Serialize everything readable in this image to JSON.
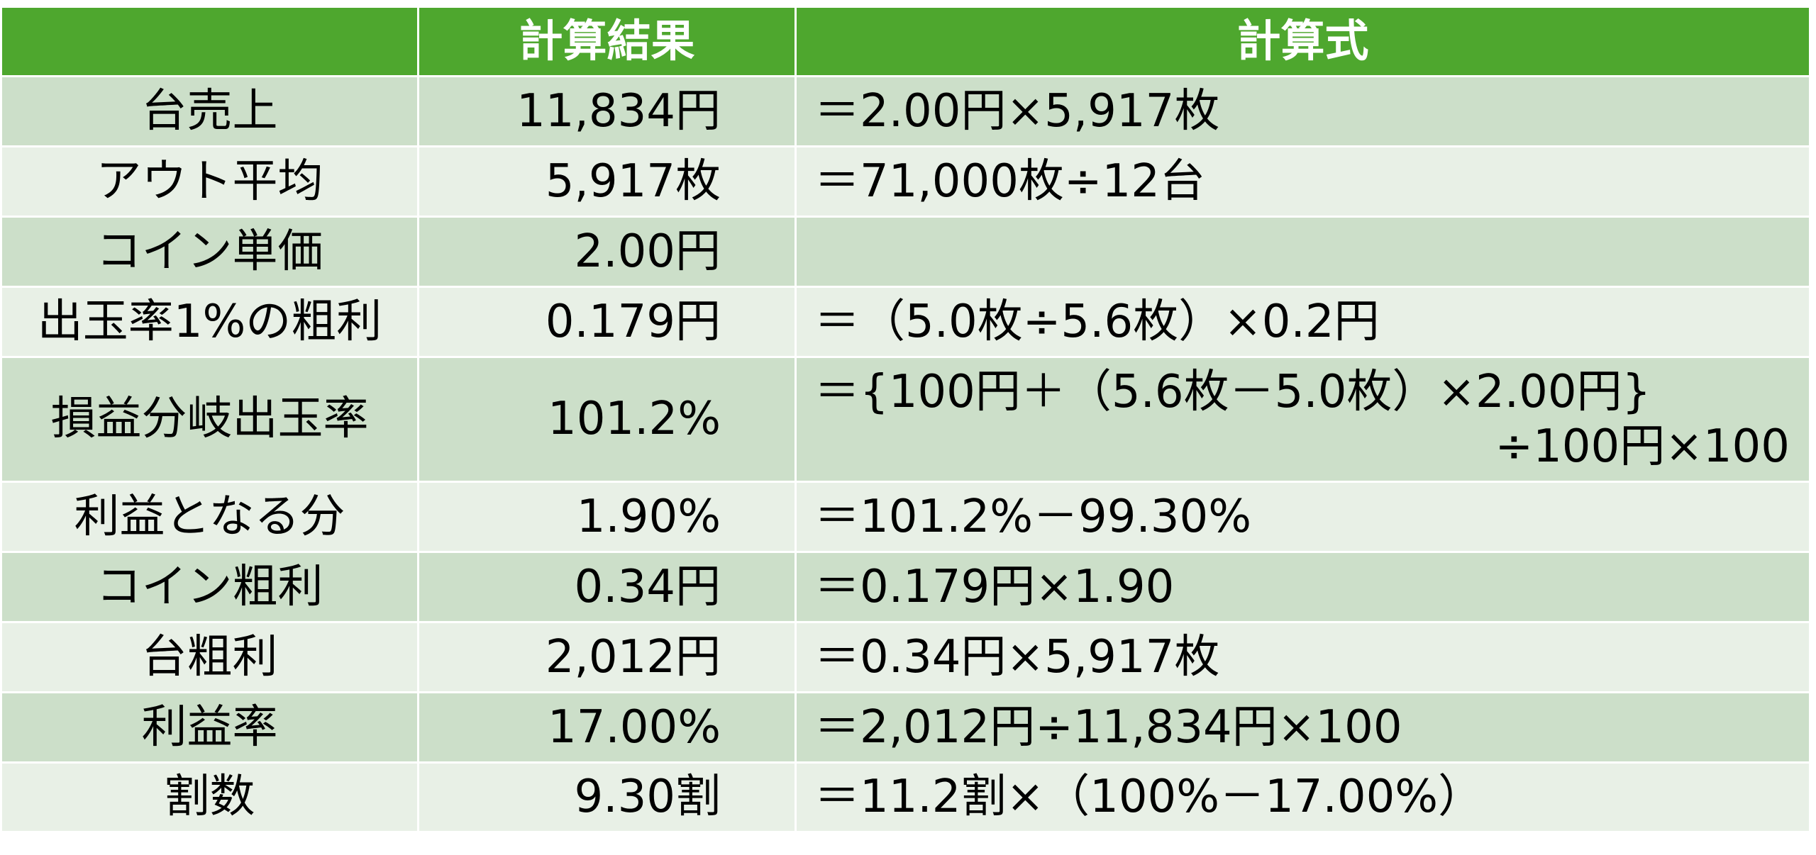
{
  "colors": {
    "header_bg": "#4EA72E",
    "header_text": "#FFFFFF",
    "band_dark": "#CCDFC9",
    "band_light": "#E8F0E6",
    "body_text": "#000000",
    "grid_line": "#FFFFFF"
  },
  "chart_data": {
    "type": "table",
    "columns": [
      "",
      "計算結果",
      "計算式"
    ],
    "rows": [
      {
        "label": "台売上",
        "result": "11,834円",
        "formula": [
          "＝2.00円×5,917枚"
        ]
      },
      {
        "label": "アウト平均",
        "result": "5,917枚",
        "formula": [
          "＝71,000枚÷12台"
        ]
      },
      {
        "label": "コイン単価",
        "result": "2.00円",
        "formula": []
      },
      {
        "label": "出玉率1%の粗利",
        "result": "0.179円",
        "formula": [
          "＝（5.0枚÷5.6枚）×0.2円"
        ]
      },
      {
        "label": "損益分岐出玉率",
        "result": "101.2%",
        "formula": [
          "＝{100円＋（5.6枚－5.0枚）×2.00円}",
          "÷100円×100"
        ]
      },
      {
        "label": "利益となる分",
        "result": "1.90%",
        "formula": [
          "＝101.2%－99.30%"
        ]
      },
      {
        "label": "コイン粗利",
        "result": "0.34円",
        "formula": [
          "＝0.179円×1.90"
        ]
      },
      {
        "label": "台粗利",
        "result": "2,012円",
        "formula": [
          "＝0.34円×5,917枚"
        ]
      },
      {
        "label": "利益率",
        "result": "17.00%",
        "formula": [
          "＝2,012円÷11,834円×100"
        ]
      },
      {
        "label": "割数",
        "result": "9.30割",
        "formula": [
          "＝11.2割×（100%－17.00%）"
        ]
      }
    ]
  }
}
